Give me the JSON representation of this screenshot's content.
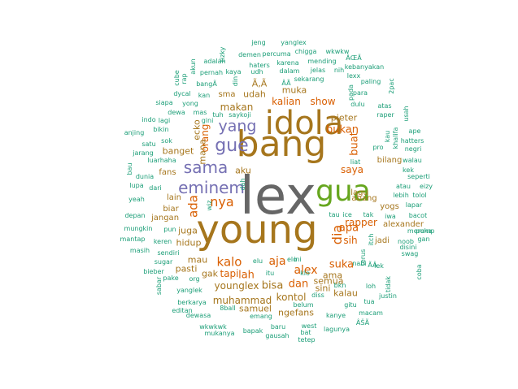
{
  "colors": {
    "small": "#1b9e77",
    "mid": "#d95f02",
    "blue": "#7570b3",
    "gold": "#a6761d",
    "dark": "#666666",
    "bright": "#66a61e",
    "grey": "#7f7f7f"
  },
  "wordcloud": {
    "words": [
      {
        "text": "lex"
      },
      {
        "text": "young"
      },
      {
        "text": "bang"
      },
      {
        "text": "idola"
      },
      {
        "text": "gua"
      },
      {
        "text": "gue"
      },
      {
        "text": "sama"
      },
      {
        "text": "eminem"
      },
      {
        "text": "yang"
      },
      {
        "text": "nya"
      },
      {
        "text": "dia"
      },
      {
        "text": "ada"
      },
      {
        "text": "bukan"
      },
      {
        "text": "buat"
      },
      {
        "text": "kalo"
      },
      {
        "text": "alex"
      },
      {
        "text": "aja"
      },
      {
        "text": "sih"
      },
      {
        "text": "apa"
      },
      {
        "text": "saya"
      },
      {
        "text": "show"
      },
      {
        "text": "kalian"
      },
      {
        "text": "udah"
      },
      {
        "text": "makan"
      },
      {
        "text": "orang"
      },
      {
        "text": "rapper"
      },
      {
        "text": "tapi"
      },
      {
        "text": "lah"
      },
      {
        "text": "dan"
      },
      {
        "text": "suka"
      },
      {
        "text": "bisa"
      },
      {
        "text": "younglex"
      },
      {
        "text": "muhammad"
      },
      {
        "text": "kontol"
      },
      {
        "text": "samuel"
      },
      {
        "text": "ngefans"
      },
      {
        "text": "semua"
      },
      {
        "text": "kalau"
      },
      {
        "text": "ama"
      },
      {
        "text": "sini"
      },
      {
        "text": "aku"
      },
      {
        "text": "ecko"
      },
      {
        "text": "banget"
      },
      {
        "text": "fans"
      },
      {
        "text": "lain"
      },
      {
        "text": "biar"
      },
      {
        "text": "jangan"
      },
      {
        "text": "juga"
      },
      {
        "text": "hidup"
      },
      {
        "text": "mau"
      },
      {
        "text": "pasti"
      },
      {
        "text": "gak"
      },
      {
        "text": "muka"
      },
      {
        "text": "pieter"
      },
      {
        "text": "abang"
      },
      {
        "text": "lagu"
      },
      {
        "text": "bilang"
      },
      {
        "text": "yogs"
      },
      {
        "text": "alexander"
      },
      {
        "text": "jadi"
      },
      {
        "text": "mana"
      },
      {
        "text": "sma"
      },
      {
        "text": "Ã‚Ã"
      },
      {
        "text": "jeng"
      },
      {
        "text": "yanglex"
      },
      {
        "text": "wkwkw"
      },
      {
        "text": "demen"
      },
      {
        "text": "percuma"
      },
      {
        "text": "chigga"
      },
      {
        "text": "ÂŒÃ"
      },
      {
        "text": "rizky"
      },
      {
        "text": "akun"
      },
      {
        "text": "adalah"
      },
      {
        "text": "haters"
      },
      {
        "text": "karena"
      },
      {
        "text": "mending"
      },
      {
        "text": "kebanyakan"
      },
      {
        "text": "cube"
      },
      {
        "text": "rap"
      },
      {
        "text": "kaya"
      },
      {
        "text": "dalam"
      },
      {
        "text": "jelas"
      },
      {
        "text": "nih"
      },
      {
        "text": "lexx"
      },
      {
        "text": "pernah"
      },
      {
        "text": "udh"
      },
      {
        "text": "sekarang"
      },
      {
        "text": "paling"
      },
      {
        "text": "bangÃ"
      },
      {
        "text": "din"
      },
      {
        "text": "para"
      },
      {
        "text": "2pac"
      },
      {
        "text": "dycal"
      },
      {
        "text": "kan"
      },
      {
        "text": "pada"
      },
      {
        "text": "siapa"
      },
      {
        "text": "yong"
      },
      {
        "text": "dulu"
      },
      {
        "text": "atas"
      },
      {
        "text": "tuh"
      },
      {
        "text": "saykoji"
      },
      {
        "text": "usah"
      },
      {
        "text": "dewa"
      },
      {
        "text": "mas"
      },
      {
        "text": "indo"
      },
      {
        "text": "lagi"
      },
      {
        "text": "gini"
      },
      {
        "text": "anjing"
      },
      {
        "text": "bikin"
      },
      {
        "text": "ape"
      },
      {
        "text": "satu"
      },
      {
        "text": "sok"
      },
      {
        "text": "liat"
      },
      {
        "text": "khalifa"
      },
      {
        "text": "kau"
      },
      {
        "text": "hatters"
      },
      {
        "text": "jarang"
      },
      {
        "text": "pro"
      },
      {
        "text": "negri"
      },
      {
        "text": "luarhaha"
      },
      {
        "text": "walau"
      },
      {
        "text": "bau"
      },
      {
        "text": "kek"
      },
      {
        "text": "dunia"
      },
      {
        "text": "seperti"
      },
      {
        "text": "lupa"
      },
      {
        "text": "dari"
      },
      {
        "text": "atau"
      },
      {
        "text": "eizy"
      },
      {
        "text": "dah"
      },
      {
        "text": "lebih"
      },
      {
        "text": "tolol"
      },
      {
        "text": "yeah"
      },
      {
        "text": "lapar"
      },
      {
        "text": "depan"
      },
      {
        "text": "tau"
      },
      {
        "text": "ice"
      },
      {
        "text": "tak"
      },
      {
        "text": "iwa"
      },
      {
        "text": "bacot"
      },
      {
        "text": "mungkin"
      },
      {
        "text": "pun"
      },
      {
        "text": "itch"
      },
      {
        "text": "mereka"
      },
      {
        "text": "pump"
      },
      {
        "text": "mantap"
      },
      {
        "text": "keren"
      },
      {
        "text": "noob"
      },
      {
        "text": "gan"
      },
      {
        "text": "masih"
      },
      {
        "text": "sendiri"
      },
      {
        "text": "swag"
      },
      {
        "text": "sugar"
      },
      {
        "text": "elu"
      },
      {
        "text": "ini"
      },
      {
        "text": "nabi"
      },
      {
        "text": "lek"
      },
      {
        "text": "terus"
      },
      {
        "text": "bieber"
      },
      {
        "text": "itu"
      },
      {
        "text": "klo"
      },
      {
        "text": "tidak"
      },
      {
        "text": "coba"
      },
      {
        "text": "sabar"
      },
      {
        "text": "pake"
      },
      {
        "text": "org"
      },
      {
        "text": "bkn"
      },
      {
        "text": "loh"
      },
      {
        "text": "yanglek"
      },
      {
        "text": "justin"
      },
      {
        "text": "berkarya"
      },
      {
        "text": "belum"
      },
      {
        "text": "tua"
      },
      {
        "text": "editan"
      },
      {
        "text": "gitu"
      },
      {
        "text": "dewasa"
      },
      {
        "text": "8ball"
      },
      {
        "text": "emang"
      },
      {
        "text": "kanye"
      },
      {
        "text": "macam"
      },
      {
        "text": "wkwkwk"
      },
      {
        "text": "baru"
      },
      {
        "text": "west"
      },
      {
        "text": "ÂŠÃ"
      },
      {
        "text": "mukanya"
      },
      {
        "text": "bapak"
      },
      {
        "text": "gausah"
      },
      {
        "text": "bat"
      },
      {
        "text": "lagunya"
      },
      {
        "text": "tetep"
      },
      {
        "text": "diss"
      },
      {
        "text": "elo"
      },
      {
        "text": "raper"
      },
      {
        "text": "disini"
      },
      {
        "text": "wiz"
      },
      {
        "text": "ÃÂ"
      },
      {
        "text": "ÂÃ"
      }
    ]
  }
}
